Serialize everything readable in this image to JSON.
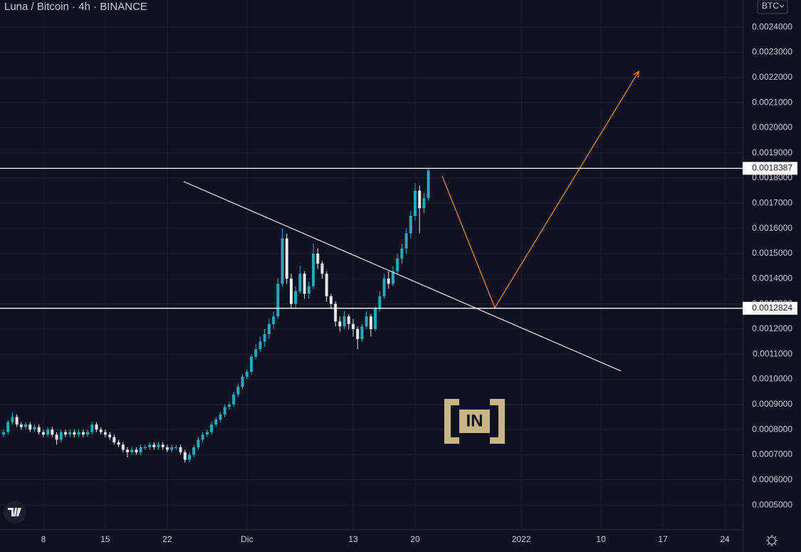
{
  "chart_data": {
    "type": "candlestick",
    "title": "Luna / Bitcoin · 4h · BINANCE",
    "currency": "BTC",
    "watermark": "IN",
    "up_color": "#2aa7c0",
    "down_color": "#e6e6e6",
    "grid": true,
    "xlim": [
      3.1,
      87.0
    ],
    "ylim": [
      0.000404,
      0.002508
    ],
    "xticks": [
      {
        "value": 8,
        "label": "8"
      },
      {
        "value": 15,
        "label": "15"
      },
      {
        "value": 22,
        "label": "22"
      },
      {
        "value": 31,
        "label": "Dic"
      },
      {
        "value": 43,
        "label": "13"
      },
      {
        "value": 50,
        "label": "20"
      },
      {
        "value": 62,
        "label": "2022"
      },
      {
        "value": 71,
        "label": "10"
      },
      {
        "value": 78,
        "label": "17"
      },
      {
        "value": 85,
        "label": "24"
      }
    ],
    "yticks": [
      {
        "value": 0.0005,
        "label": "0.0005000"
      },
      {
        "value": 0.0006,
        "label": "0.0006000"
      },
      {
        "value": 0.0007,
        "label": "0.0007000"
      },
      {
        "value": 0.0008,
        "label": "0.0008000"
      },
      {
        "value": 0.0009,
        "label": "0.0009000"
      },
      {
        "value": 0.001,
        "label": "0.0010000"
      },
      {
        "value": 0.0011,
        "label": "0.0011000"
      },
      {
        "value": 0.0012,
        "label": "0.0012000"
      },
      {
        "value": 0.0013,
        "label": "0.0013000"
      },
      {
        "value": 0.0014,
        "label": "0.0014000"
      },
      {
        "value": 0.0015,
        "label": "0.0015000"
      },
      {
        "value": 0.0016,
        "label": "0.0016000"
      },
      {
        "value": 0.0017,
        "label": "0.0017000"
      },
      {
        "value": 0.0018,
        "label": "0.0018000"
      },
      {
        "value": 0.0019,
        "label": "0.0019000"
      },
      {
        "value": 0.002,
        "label": "0.0020000"
      },
      {
        "value": 0.0021,
        "label": "0.0021000"
      },
      {
        "value": 0.0022,
        "label": "0.0022000"
      },
      {
        "value": 0.0023,
        "label": "0.0023000"
      },
      {
        "value": 0.0024,
        "label": "0.0024000"
      }
    ],
    "hlines": [
      0.0018387,
      0.0012824
    ],
    "x": [
      3.5,
      4,
      4.5,
      5,
      5.5,
      6,
      6.5,
      7,
      7.5,
      8,
      8.5,
      9,
      9.5,
      10,
      10.5,
      11,
      11.5,
      12,
      12.5,
      13,
      13.5,
      14,
      14.5,
      15,
      15.5,
      16,
      16.5,
      17,
      17.5,
      18,
      18.5,
      19,
      19.5,
      20,
      20.5,
      21,
      21.5,
      22,
      22.5,
      23,
      23.5,
      24,
      24.5,
      25,
      25.5,
      26,
      26.5,
      27,
      27.5,
      28,
      28.5,
      29,
      29.5,
      30,
      30.5,
      31,
      31.5,
      32,
      32.5,
      33,
      33.5,
      34,
      34.5,
      35,
      35.5,
      36,
      36.5,
      37,
      37.5,
      38,
      38.5,
      39,
      39.5,
      40,
      40.5,
      41,
      41.5,
      42,
      42.5,
      43,
      43.5,
      44,
      44.5,
      45,
      45.5,
      46,
      46.5,
      47,
      47.5,
      48,
      48.5,
      49,
      49.5,
      50,
      50.5,
      51,
      51.5
    ],
    "open": [
      0.00078,
      0.00079,
      0.00083,
      0.00085,
      0.00082,
      0.00081,
      0.00082,
      0.0008,
      0.00081,
      0.00079,
      0.00078,
      0.0008,
      0.00078,
      0.00076,
      0.00079,
      0.00078,
      0.00079,
      0.00078,
      0.00079,
      0.00078,
      0.00079,
      0.00082,
      0.0008,
      0.00079,
      0.00078,
      0.00077,
      0.00075,
      0.00074,
      0.00072,
      0.00071,
      0.00072,
      0.00071,
      0.00073,
      0.00073,
      0.00074,
      0.00073,
      0.00074,
      0.00073,
      0.00072,
      0.00073,
      0.00073,
      0.00071,
      0.00068,
      0.0007,
      0.00073,
      0.00076,
      0.00078,
      0.00079,
      0.00082,
      0.00084,
      0.00086,
      0.00089,
      0.0009,
      0.00094,
      0.00097,
      0.00101,
      0.00103,
      0.00109,
      0.00112,
      0.00115,
      0.00118,
      0.00122,
      0.00125,
      0.00138,
      0.00156,
      0.0014,
      0.0013,
      0.00135,
      0.00142,
      0.00134,
      0.00137,
      0.0015,
      0.00146,
      0.00142,
      0.00133,
      0.0013,
      0.00123,
      0.00121,
      0.00125,
      0.00122,
      0.0012,
      0.00116,
      0.00121,
      0.00125,
      0.0012,
      0.00128,
      0.00133,
      0.0014,
      0.00138,
      0.00143,
      0.00148,
      0.00152,
      0.00158,
      0.00165,
      0.00175,
      0.00168,
      0.00172
    ],
    "high": [
      0.0008,
      0.00084,
      0.00087,
      0.00086,
      0.00083,
      0.00083,
      0.00083,
      0.00082,
      0.00082,
      0.0008,
      0.00081,
      0.00081,
      0.00079,
      0.0008,
      0.0008,
      0.0008,
      0.0008,
      0.0008,
      0.0008,
      0.0008,
      0.00083,
      0.00083,
      0.00081,
      0.0008,
      0.00079,
      0.00078,
      0.00076,
      0.00075,
      0.00073,
      0.00073,
      0.00073,
      0.00074,
      0.00074,
      0.00075,
      0.00075,
      0.00075,
      0.00075,
      0.00074,
      0.00074,
      0.00074,
      0.00074,
      0.00072,
      0.00071,
      0.00074,
      0.00077,
      0.00079,
      0.0008,
      0.00083,
      0.00085,
      0.00087,
      0.0009,
      0.00091,
      0.00095,
      0.00098,
      0.00102,
      0.00104,
      0.0011,
      0.00114,
      0.00117,
      0.0012,
      0.00124,
      0.00127,
      0.0014,
      0.0016,
      0.00158,
      0.00142,
      0.00137,
      0.00145,
      0.00143,
      0.00139,
      0.00154,
      0.00152,
      0.00147,
      0.00143,
      0.00134,
      0.00131,
      0.00125,
      0.00127,
      0.00126,
      0.00124,
      0.00121,
      0.00122,
      0.00127,
      0.00126,
      0.00129,
      0.00135,
      0.00142,
      0.00143,
      0.00145,
      0.0015,
      0.00154,
      0.0016,
      0.00167,
      0.00178,
      0.00177,
      0.00174,
      0.00184
    ],
    "low": [
      0.00077,
      0.00078,
      0.00082,
      0.00081,
      0.0008,
      0.0008,
      0.00079,
      0.00079,
      0.00078,
      0.00077,
      0.00077,
      0.00077,
      0.00074,
      0.00075,
      0.00077,
      0.00077,
      0.00077,
      0.00077,
      0.00077,
      0.00077,
      0.00078,
      0.00079,
      0.00078,
      0.00077,
      0.00076,
      0.00074,
      0.00073,
      0.00071,
      0.00069,
      0.0007,
      0.0007,
      0.0007,
      0.00072,
      0.00072,
      0.00072,
      0.00072,
      0.00072,
      0.00071,
      0.00071,
      0.00072,
      0.0007,
      0.00067,
      0.00067,
      0.00069,
      0.00072,
      0.00075,
      0.00077,
      0.00078,
      0.00081,
      0.00083,
      0.00085,
      0.00088,
      0.00089,
      0.00093,
      0.00096,
      0.001,
      0.00102,
      0.00108,
      0.00111,
      0.00113,
      0.00116,
      0.0012,
      0.00124,
      0.00137,
      0.00138,
      0.00128,
      0.00128,
      0.00134,
      0.00132,
      0.00132,
      0.00136,
      0.00144,
      0.0014,
      0.00131,
      0.00128,
      0.00121,
      0.00119,
      0.0012,
      0.0012,
      0.00117,
      0.00112,
      0.00115,
      0.0012,
      0.00117,
      0.00119,
      0.00127,
      0.00132,
      0.00136,
      0.00137,
      0.00142,
      0.00146,
      0.0015,
      0.00156,
      0.00163,
      0.00158,
      0.00166,
      0.00171
    ],
    "close": [
      0.00079,
      0.00083,
      0.00085,
      0.00082,
      0.00081,
      0.00082,
      0.0008,
      0.00081,
      0.00079,
      0.00078,
      0.0008,
      0.00078,
      0.00076,
      0.00079,
      0.00078,
      0.00079,
      0.00078,
      0.00079,
      0.00078,
      0.00079,
      0.00082,
      0.0008,
      0.00079,
      0.00078,
      0.00077,
      0.00075,
      0.00074,
      0.00072,
      0.00071,
      0.00072,
      0.00071,
      0.00073,
      0.00073,
      0.00074,
      0.00073,
      0.00074,
      0.00073,
      0.00072,
      0.00073,
      0.00073,
      0.00071,
      0.00068,
      0.0007,
      0.00073,
      0.00076,
      0.00078,
      0.00079,
      0.00082,
      0.00084,
      0.00086,
      0.00089,
      0.0009,
      0.00094,
      0.00097,
      0.00101,
      0.00103,
      0.00109,
      0.00112,
      0.00115,
      0.00118,
      0.00122,
      0.00125,
      0.00138,
      0.00156,
      0.0014,
      0.0013,
      0.00135,
      0.00142,
      0.00134,
      0.00137,
      0.0015,
      0.00146,
      0.00142,
      0.00133,
      0.0013,
      0.00123,
      0.00121,
      0.00125,
      0.00122,
      0.0012,
      0.00116,
      0.00121,
      0.00125,
      0.0012,
      0.00128,
      0.00133,
      0.0014,
      0.00138,
      0.00143,
      0.00148,
      0.00152,
      0.00158,
      0.00165,
      0.00175,
      0.00168,
      0.00172,
      0.00183
    ],
    "drawings": [
      {
        "color": "#d8d8d8",
        "x": [
          23.86,
          73.25
        ],
        "y": [
          0.001786,
          0.001033
        ]
      },
      {
        "color": "#e08a1e",
        "x": [
          53.06,
          59.01,
          75.26
        ],
        "y": [
          0.001808,
          0.001285,
          0.002224
        ],
        "arrow": true
      }
    ]
  }
}
